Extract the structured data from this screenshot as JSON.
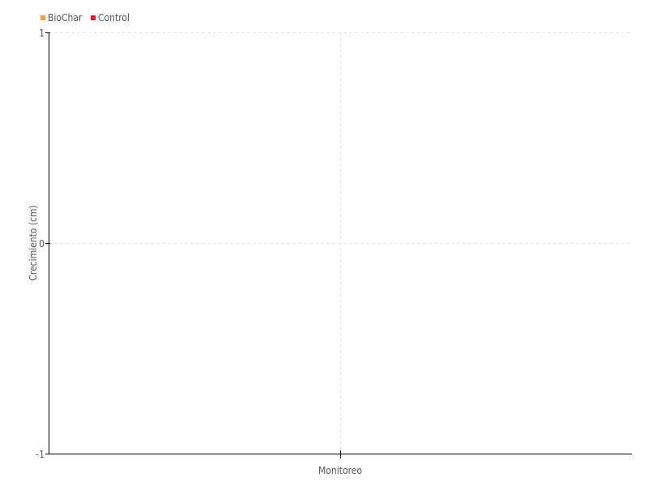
{
  "chart_data": {
    "type": "line",
    "title": "",
    "xlabel": "Monitoreo",
    "ylabel": "Crecimiento (cm)",
    "ylim": [
      -1,
      1
    ],
    "yticks": [
      "1",
      "0",
      "-1"
    ],
    "categories": [],
    "grid": true,
    "legend": "top-left",
    "series": [
      {
        "name": "BioChar",
        "color": "#f39c34",
        "values": []
      },
      {
        "name": "Control",
        "color": "#f0142f",
        "values": []
      }
    ]
  }
}
